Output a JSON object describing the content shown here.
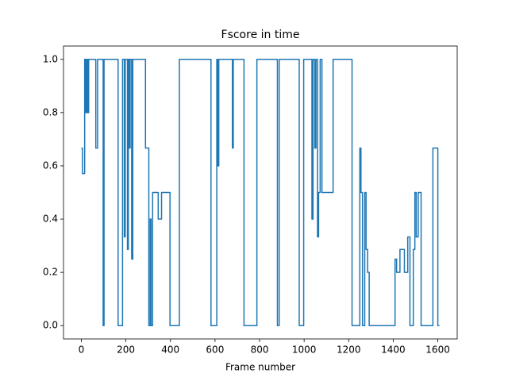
{
  "chart_data": {
    "type": "line",
    "title": "Fscore in time",
    "x_label": "Frame number",
    "color": "#1f77b4",
    "x": [
      0,
      5,
      5,
      15,
      15,
      20,
      20,
      25,
      25,
      30,
      30,
      33,
      33,
      65,
      65,
      73,
      73,
      98,
      98,
      102,
      102,
      165,
      165,
      185,
      185,
      193,
      193,
      197,
      197,
      207,
      207,
      211,
      211,
      215,
      215,
      219,
      219,
      226,
      226,
      231,
      231,
      288,
      288,
      303,
      303,
      309,
      309,
      313,
      313,
      320,
      320,
      345,
      345,
      360,
      360,
      398,
      398,
      440,
      440,
      582,
      582,
      608,
      608,
      612,
      612,
      617,
      617,
      678,
      678,
      682,
      682,
      730,
      730,
      788,
      788,
      880,
      880,
      888,
      888,
      978,
      978,
      998,
      998,
      1035,
      1035,
      1040,
      1040,
      1048,
      1048,
      1053,
      1053,
      1060,
      1060,
      1065,
      1065,
      1072,
      1072,
      1080,
      1080,
      1130,
      1130,
      1215,
      1215,
      1250,
      1250,
      1255,
      1255,
      1262,
      1262,
      1272,
      1272,
      1278,
      1278,
      1285,
      1285,
      1292,
      1292,
      1408,
      1408,
      1415,
      1415,
      1430,
      1430,
      1450,
      1450,
      1465,
      1465,
      1475,
      1475,
      1490,
      1490,
      1497,
      1497,
      1503,
      1503,
      1512,
      1512,
      1525,
      1525,
      1578,
      1578,
      1600,
      1600,
      1607
    ],
    "values": [
      0.667,
      0.667,
      0.571,
      0.571,
      1,
      1,
      0.8,
      0.8,
      1,
      1,
      0.8,
      0.8,
      1,
      1,
      0.667,
      0.667,
      1,
      1,
      0,
      0,
      1,
      1,
      0,
      0,
      1,
      1,
      0.333,
      0.333,
      1,
      1,
      0.286,
      0.286,
      1,
      1,
      0.667,
      0.667,
      1,
      1,
      0.25,
      0.25,
      1,
      1,
      0.667,
      0.667,
      0,
      0,
      0.4,
      0.4,
      0,
      0,
      0.5,
      0.5,
      0.4,
      0.4,
      0.5,
      0.5,
      0,
      0,
      1,
      1,
      0,
      0,
      1,
      1,
      0.6,
      0.6,
      1,
      1,
      0.667,
      0.667,
      1,
      1,
      0,
      0,
      1,
      1,
      0,
      0,
      1,
      1,
      0,
      0,
      1,
      1,
      0.4,
      0.4,
      1,
      1,
      0.667,
      0.667,
      1,
      1,
      0.333,
      0.333,
      0.5,
      0.5,
      1,
      1,
      0.5,
      0.5,
      1,
      1,
      0,
      0,
      0.667,
      0.667,
      0.5,
      0.5,
      0,
      0,
      0.5,
      0.5,
      0.286,
      0.286,
      0.2,
      0.2,
      0,
      0,
      0.25,
      0.25,
      0.2,
      0.2,
      0.286,
      0.286,
      0.2,
      0.2,
      0.333,
      0.333,
      0,
      0,
      0.286,
      0.286,
      0.5,
      0.5,
      0.333,
      0.333,
      0.5,
      0.5,
      0,
      0,
      0.667,
      0.667,
      0,
      0
    ],
    "xlim": [
      -80,
      1687
    ],
    "xticks": [
      0,
      200,
      400,
      600,
      800,
      1000,
      1200,
      1400,
      1600
    ],
    "ylim": [
      -0.05,
      1.05
    ],
    "yticks": [
      {
        "value": 0,
        "label": "0.0"
      },
      0.2,
      0.4,
      0.6,
      0.8,
      {
        "value": 1,
        "label": "1.0"
      }
    ]
  }
}
